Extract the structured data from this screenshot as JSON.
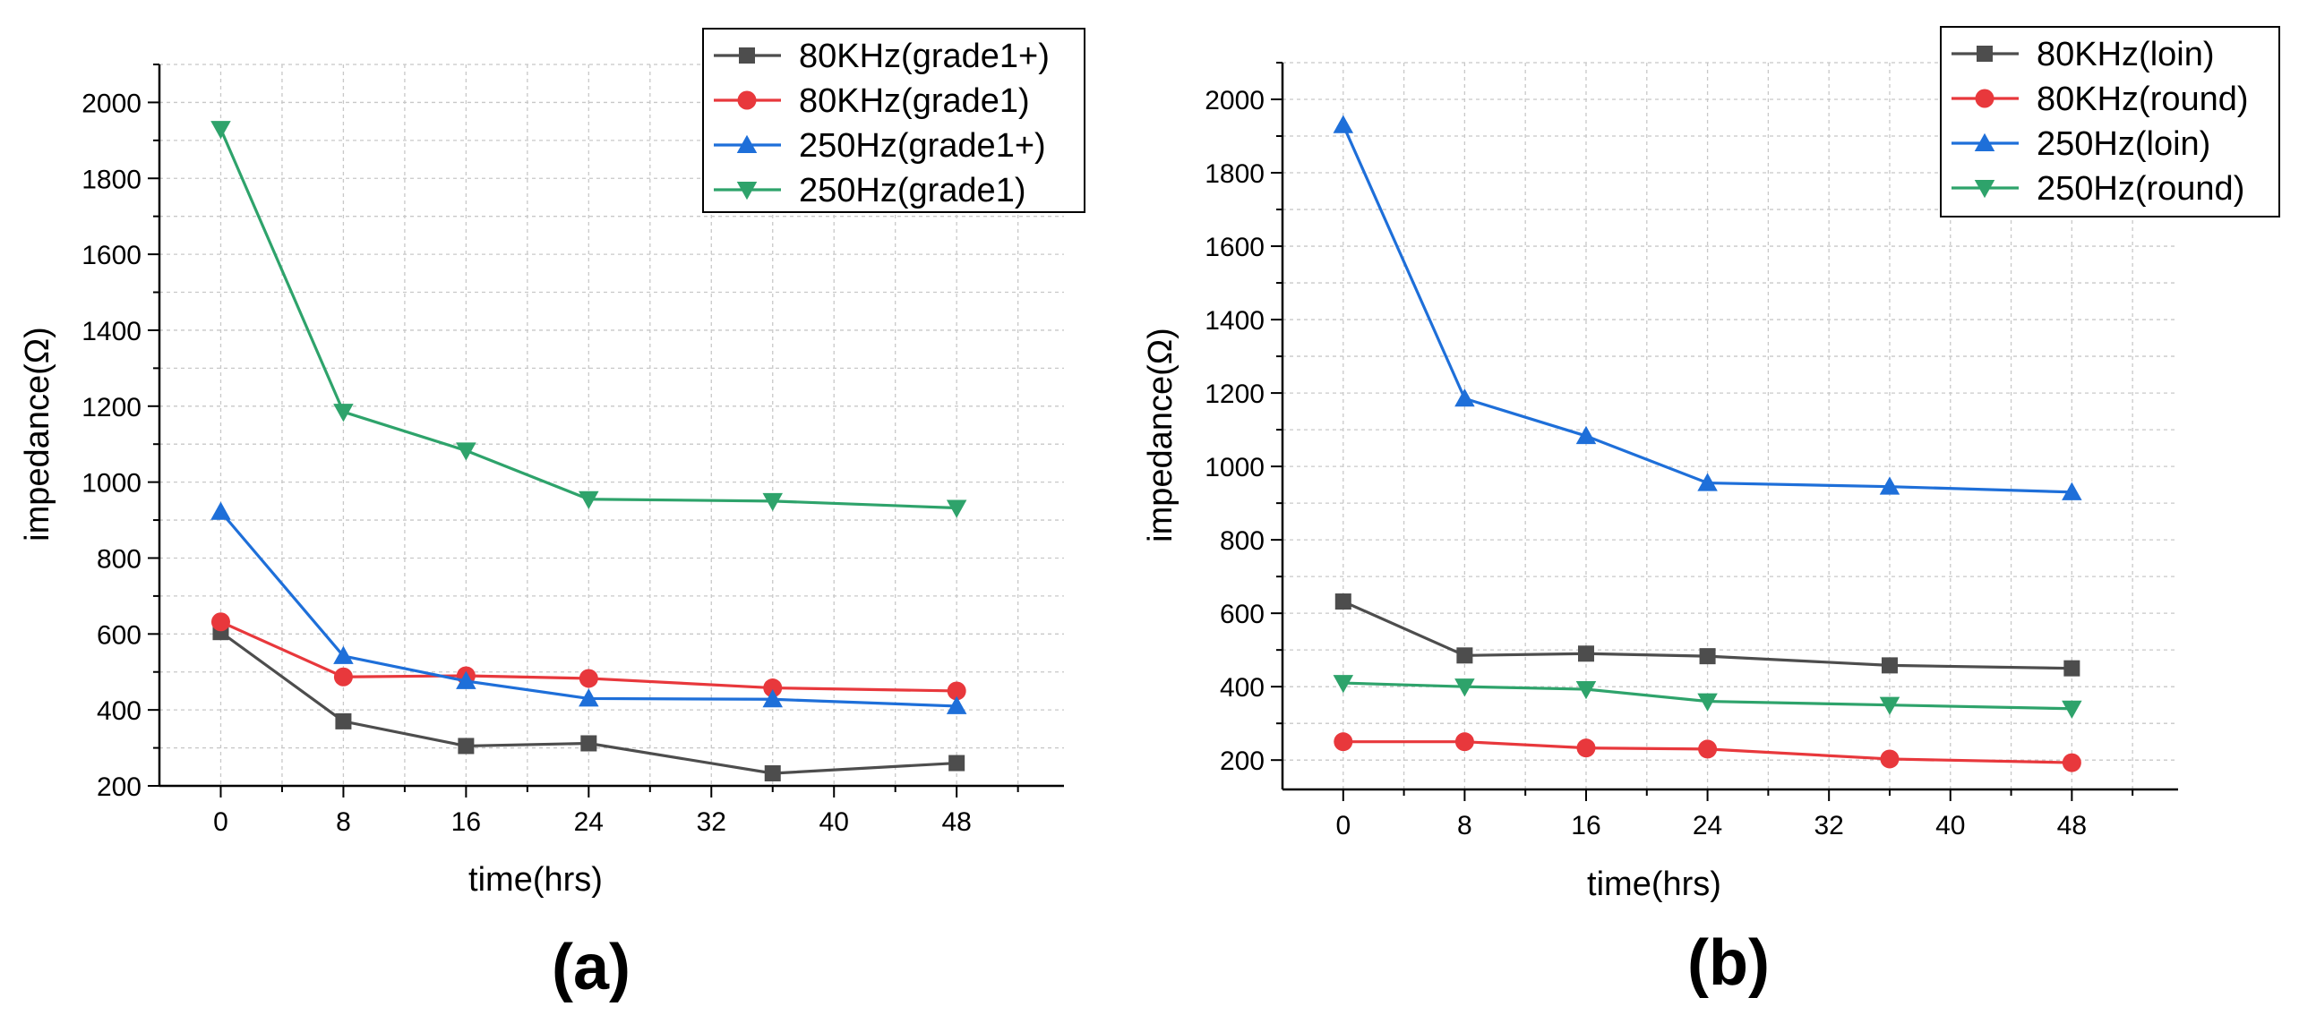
{
  "chart_data": [
    {
      "type": "line",
      "panel_label": "(a)",
      "xlabel": "time(hrs)",
      "ylabel": "impedance(Ω)",
      "x": [
        0,
        8,
        16,
        24,
        36,
        48
      ],
      "xticks": [
        0,
        8,
        16,
        24,
        32,
        40,
        48
      ],
      "yticks": [
        200,
        400,
        600,
        800,
        1000,
        1200,
        1400,
        1600,
        1800,
        2000
      ],
      "xlim": [
        -4,
        55
      ],
      "ylim": [
        200,
        2100
      ],
      "grid": true,
      "legend_position": "top-right",
      "series": [
        {
          "name": "80KHz(grade1+)",
          "color": "#4d4d4d",
          "marker": "square",
          "values": [
            605,
            370,
            305,
            312,
            233,
            260
          ]
        },
        {
          "name": "80KHz(grade1)",
          "color": "#e8383c",
          "marker": "circle",
          "values": [
            632,
            487,
            490,
            483,
            458,
            450
          ]
        },
        {
          "name": "250Hz(grade1+)",
          "color": "#1e6fd9",
          "marker": "triangle-up",
          "values": [
            922,
            542,
            476,
            430,
            428,
            410
          ]
        },
        {
          "name": "250Hz(grade1)",
          "color": "#2ea36b",
          "marker": "triangle-down",
          "values": [
            1930,
            1185,
            1083,
            955,
            950,
            932
          ]
        }
      ]
    },
    {
      "type": "line",
      "panel_label": "(b)",
      "xlabel": "time(hrs)",
      "ylabel": "impedance(Ω)",
      "x": [
        0,
        8,
        16,
        24,
        36,
        48
      ],
      "xticks": [
        0,
        8,
        16,
        24,
        32,
        40,
        48
      ],
      "yticks": [
        200,
        400,
        600,
        800,
        1000,
        1200,
        1400,
        1600,
        1800,
        2000
      ],
      "xlim": [
        -4,
        55
      ],
      "ylim": [
        120,
        2100
      ],
      "grid": true,
      "legend_position": "top-right",
      "series": [
        {
          "name": "80KHz(loin)",
          "color": "#4d4d4d",
          "marker": "square",
          "values": [
            632,
            485,
            490,
            483,
            458,
            450
          ]
        },
        {
          "name": "80KHz(round)",
          "color": "#e8383c",
          "marker": "circle",
          "values": [
            250,
            250,
            233,
            230,
            203,
            193
          ]
        },
        {
          "name": "250Hz(loin)",
          "color": "#1e6fd9",
          "marker": "triangle-up",
          "values": [
            1930,
            1185,
            1083,
            955,
            945,
            930
          ]
        },
        {
          "name": "250Hz(round)",
          "color": "#2ea36b",
          "marker": "triangle-down",
          "values": [
            410,
            400,
            393,
            360,
            350,
            340
          ]
        }
      ]
    }
  ]
}
